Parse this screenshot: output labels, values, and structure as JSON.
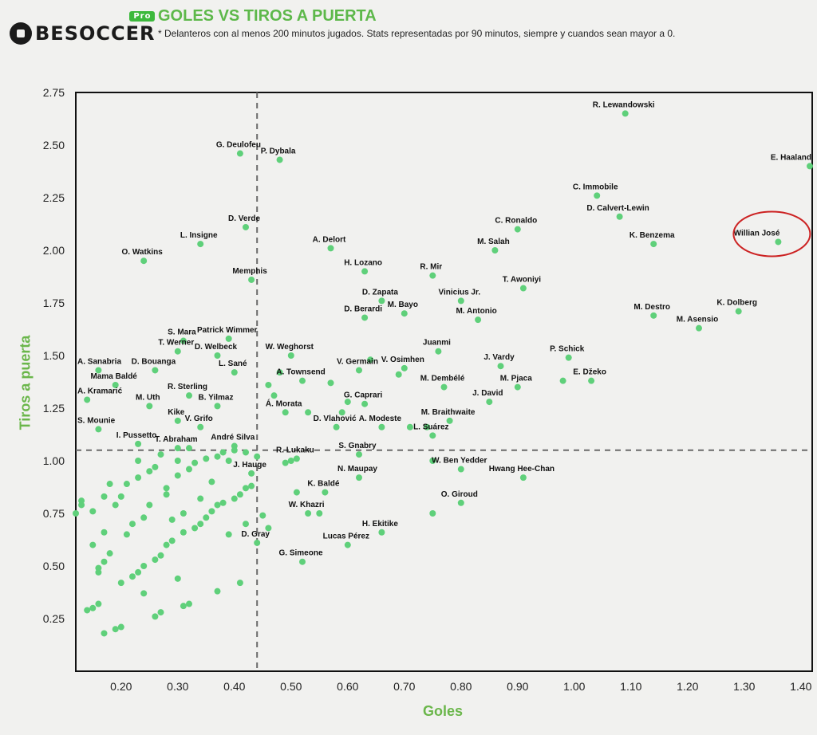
{
  "brand": {
    "logo_text": "BESOCCER",
    "pro_badge": "Pro"
  },
  "title": "GOLES VS TIROS A PUERTA",
  "subtitle": "* Delanteros con al menos 200 minutos jugados. Stats representadas por 90 minutos, siempre y cuandos sean mayor a 0.",
  "colors": {
    "title": "#5db84a",
    "point": "#5fd07a",
    "highlight": "#cc2222",
    "reference": "#6a6a6a"
  },
  "chart_data": {
    "type": "scatter",
    "title": "GOLES VS TIROS A PUERTA",
    "xlabel": "Goles",
    "ylabel": "Tiros a puerta",
    "xlim": [
      0.12,
      1.42
    ],
    "ylim": [
      0.0,
      2.75
    ],
    "xticks": [
      "0.20",
      "0.30",
      "0.40",
      "0.50",
      "0.60",
      "0.70",
      "0.80",
      "0.90",
      "1.00",
      "1.10",
      "1.20",
      "1.30",
      "1.40"
    ],
    "yticks": [
      "0.25",
      "0.50",
      "0.75",
      "1.00",
      "1.25",
      "1.50",
      "1.75",
      "2.00",
      "2.25",
      "2.50",
      "2.75"
    ],
    "grid": false,
    "reference_lines": {
      "x": 0.44,
      "y": 1.05
    },
    "highlight": "Willian José",
    "labeled_points": [
      {
        "name": "R. Lewandowski",
        "x": 1.09,
        "y": 2.65
      },
      {
        "name": "E. Haaland",
        "x": 1.42,
        "y": 2.4
      },
      {
        "name": "C. Immobile",
        "x": 1.04,
        "y": 2.26
      },
      {
        "name": "D. Calvert-Lewin",
        "x": 1.08,
        "y": 2.16
      },
      {
        "name": "K. Benzema",
        "x": 1.14,
        "y": 2.03
      },
      {
        "name": "Willian José",
        "x": 1.36,
        "y": 2.04
      },
      {
        "name": "C. Ronaldo",
        "x": 0.9,
        "y": 2.1
      },
      {
        "name": "M. Salah",
        "x": 0.86,
        "y": 2.0
      },
      {
        "name": "T. Awoniyi",
        "x": 0.91,
        "y": 1.82
      },
      {
        "name": "M. Destro",
        "x": 1.14,
        "y": 1.69
      },
      {
        "name": "K. Dolberg",
        "x": 1.29,
        "y": 1.71
      },
      {
        "name": "M. Asensio",
        "x": 1.22,
        "y": 1.63
      },
      {
        "name": "G. Deulofeu",
        "x": 0.41,
        "y": 2.46
      },
      {
        "name": "P. Dybala",
        "x": 0.48,
        "y": 2.43
      },
      {
        "name": "D. Verde",
        "x": 0.42,
        "y": 2.11
      },
      {
        "name": "L. Insigne",
        "x": 0.34,
        "y": 2.03
      },
      {
        "name": "O. Watkins",
        "x": 0.24,
        "y": 1.95
      },
      {
        "name": "A. Delort",
        "x": 0.57,
        "y": 2.01
      },
      {
        "name": "Memphis",
        "x": 0.43,
        "y": 1.86
      },
      {
        "name": "H. Lozano",
        "x": 0.63,
        "y": 1.9
      },
      {
        "name": "R. Mir",
        "x": 0.75,
        "y": 1.88
      },
      {
        "name": "D. Zapata",
        "x": 0.66,
        "y": 1.76
      },
      {
        "name": "Vinicius Jr.",
        "x": 0.8,
        "y": 1.76
      },
      {
        "name": "D. Berardi",
        "x": 0.63,
        "y": 1.68
      },
      {
        "name": "M. Bayo",
        "x": 0.7,
        "y": 1.7
      },
      {
        "name": "M. Antonio",
        "x": 0.83,
        "y": 1.67
      },
      {
        "name": "S. Mara",
        "x": 0.31,
        "y": 1.57
      },
      {
        "name": "Patrick Wimmer",
        "x": 0.39,
        "y": 1.58
      },
      {
        "name": "T. Werner",
        "x": 0.3,
        "y": 1.52
      },
      {
        "name": "D. Welbeck",
        "x": 0.37,
        "y": 1.5
      },
      {
        "name": "W. Weghorst",
        "x": 0.5,
        "y": 1.5
      },
      {
        "name": "Juanmi",
        "x": 0.76,
        "y": 1.52
      },
      {
        "name": "P. Schick",
        "x": 0.99,
        "y": 1.49
      },
      {
        "name": "A. Sanabria",
        "x": 0.16,
        "y": 1.43
      },
      {
        "name": "D. Bouanga",
        "x": 0.26,
        "y": 1.43
      },
      {
        "name": "L. Sané",
        "x": 0.4,
        "y": 1.42
      },
      {
        "name": "A. Townsend",
        "x": 0.52,
        "y": 1.38
      },
      {
        "name": "V. Germain",
        "x": 0.62,
        "y": 1.43
      },
      {
        "name": "V. Osimhen",
        "x": 0.7,
        "y": 1.44
      },
      {
        "name": "J. Vardy",
        "x": 0.87,
        "y": 1.45
      },
      {
        "name": "E. Džeko",
        "x": 1.03,
        "y": 1.38
      },
      {
        "name": "Mama Baldé",
        "x": 0.19,
        "y": 1.36
      },
      {
        "name": "M. Dembélé",
        "x": 0.77,
        "y": 1.35
      },
      {
        "name": "M. Pjaca",
        "x": 0.9,
        "y": 1.35
      },
      {
        "name": "A. Kramarić",
        "x": 0.14,
        "y": 1.29
      },
      {
        "name": "R. Sterling",
        "x": 0.32,
        "y": 1.31
      },
      {
        "name": "M. Uth",
        "x": 0.25,
        "y": 1.26
      },
      {
        "name": "B. Yilmaz",
        "x": 0.37,
        "y": 1.26
      },
      {
        "name": "G. Caprari",
        "x": 0.63,
        "y": 1.27
      },
      {
        "name": "J. David",
        "x": 0.85,
        "y": 1.28
      },
      {
        "name": "Á. Morata",
        "x": 0.49,
        "y": 1.23
      },
      {
        "name": "M. Braithwaite",
        "x": 0.78,
        "y": 1.19
      },
      {
        "name": "Kike",
        "x": 0.3,
        "y": 1.19
      },
      {
        "name": "D. Vlahović",
        "x": 0.58,
        "y": 1.16
      },
      {
        "name": "A. Modeste",
        "x": 0.66,
        "y": 1.16
      },
      {
        "name": "L. Suárez",
        "x": 0.75,
        "y": 1.12
      },
      {
        "name": "S. Mounie",
        "x": 0.16,
        "y": 1.15
      },
      {
        "name": "V. Grifo",
        "x": 0.34,
        "y": 1.16
      },
      {
        "name": "I. Pussetto",
        "x": 0.23,
        "y": 1.08
      },
      {
        "name": "T. Abraham",
        "x": 0.3,
        "y": 1.06
      },
      {
        "name": "André Silva",
        "x": 0.4,
        "y": 1.07
      },
      {
        "name": "S. Gnabry",
        "x": 0.62,
        "y": 1.03
      },
      {
        "name": "R. Lukaku",
        "x": 0.51,
        "y": 1.01
      },
      {
        "name": "W. Ben Yedder",
        "x": 0.8,
        "y": 0.96
      },
      {
        "name": "J. Hauge",
        "x": 0.43,
        "y": 0.94
      },
      {
        "name": "N. Maupay",
        "x": 0.62,
        "y": 0.92
      },
      {
        "name": "Hwang Hee-Chan",
        "x": 0.91,
        "y": 0.92
      },
      {
        "name": "K. Baldé",
        "x": 0.56,
        "y": 0.85
      },
      {
        "name": "O. Giroud",
        "x": 0.8,
        "y": 0.8
      },
      {
        "name": "W. Khazri",
        "x": 0.53,
        "y": 0.75
      },
      {
        "name": "H. Ekitike",
        "x": 0.66,
        "y": 0.66
      },
      {
        "name": "D. Gray",
        "x": 0.44,
        "y": 0.61
      },
      {
        "name": "Lucas Pérez",
        "x": 0.6,
        "y": 0.6
      },
      {
        "name": "G. Simeone",
        "x": 0.52,
        "y": 0.52
      }
    ],
    "unlabeled_points": [
      [
        0.12,
        0.75
      ],
      [
        0.13,
        0.79
      ],
      [
        0.13,
        0.81
      ],
      [
        0.14,
        0.29
      ],
      [
        0.15,
        0.3
      ],
      [
        0.15,
        0.6
      ],
      [
        0.15,
        0.76
      ],
      [
        0.16,
        0.32
      ],
      [
        0.16,
        0.47
      ],
      [
        0.16,
        0.49
      ],
      [
        0.17,
        0.18
      ],
      [
        0.17,
        0.52
      ],
      [
        0.17,
        0.66
      ],
      [
        0.17,
        0.83
      ],
      [
        0.18,
        0.56
      ],
      [
        0.18,
        0.89
      ],
      [
        0.19,
        0.2
      ],
      [
        0.19,
        0.79
      ],
      [
        0.2,
        0.21
      ],
      [
        0.2,
        0.42
      ],
      [
        0.2,
        0.83
      ],
      [
        0.21,
        0.65
      ],
      [
        0.21,
        0.89
      ],
      [
        0.22,
        0.45
      ],
      [
        0.22,
        0.7
      ],
      [
        0.23,
        0.47
      ],
      [
        0.23,
        0.92
      ],
      [
        0.23,
        1.0
      ],
      [
        0.24,
        0.37
      ],
      [
        0.24,
        0.73
      ],
      [
        0.24,
        0.5
      ],
      [
        0.25,
        0.95
      ],
      [
        0.25,
        0.79
      ],
      [
        0.26,
        0.26
      ],
      [
        0.26,
        0.53
      ],
      [
        0.26,
        0.97
      ],
      [
        0.27,
        0.28
      ],
      [
        0.27,
        1.03
      ],
      [
        0.27,
        0.55
      ],
      [
        0.28,
        0.84
      ],
      [
        0.28,
        0.6
      ],
      [
        0.28,
        0.87
      ],
      [
        0.29,
        0.72
      ],
      [
        0.29,
        0.62
      ],
      [
        0.3,
        0.44
      ],
      [
        0.3,
        0.93
      ],
      [
        0.3,
        1.0
      ],
      [
        0.31,
        0.31
      ],
      [
        0.31,
        0.75
      ],
      [
        0.31,
        0.66
      ],
      [
        0.32,
        0.32
      ],
      [
        0.32,
        0.96
      ],
      [
        0.32,
        1.06
      ],
      [
        0.33,
        0.68
      ],
      [
        0.33,
        0.99
      ],
      [
        0.34,
        0.7
      ],
      [
        0.34,
        0.82
      ],
      [
        0.35,
        0.73
      ],
      [
        0.35,
        1.01
      ],
      [
        0.36,
        0.76
      ],
      [
        0.36,
        0.9
      ],
      [
        0.37,
        0.38
      ],
      [
        0.37,
        0.79
      ],
      [
        0.37,
        1.02
      ],
      [
        0.38,
        0.8
      ],
      [
        0.38,
        1.04
      ],
      [
        0.39,
        0.65
      ],
      [
        0.39,
        1.0
      ],
      [
        0.4,
        0.82
      ],
      [
        0.4,
        1.05
      ],
      [
        0.41,
        0.42
      ],
      [
        0.41,
        0.84
      ],
      [
        0.42,
        0.87
      ],
      [
        0.42,
        0.7
      ],
      [
        0.42,
        1.04
      ],
      [
        0.43,
        0.88
      ],
      [
        0.44,
        1.02
      ],
      [
        0.45,
        0.74
      ],
      [
        0.46,
        0.68
      ],
      [
        0.46,
        1.36
      ],
      [
        0.47,
        1.31
      ],
      [
        0.48,
        1.42
      ],
      [
        0.49,
        0.99
      ],
      [
        0.5,
        1.0
      ],
      [
        0.51,
        0.85
      ],
      [
        0.53,
        1.23
      ],
      [
        0.55,
        0.75
      ],
      [
        0.57,
        1.37
      ],
      [
        0.59,
        1.23
      ],
      [
        0.6,
        1.28
      ],
      [
        0.64,
        1.48
      ],
      [
        0.69,
        1.41
      ],
      [
        0.71,
        1.16
      ],
      [
        0.74,
        1.16
      ],
      [
        0.75,
        0.75
      ],
      [
        0.75,
        1.0
      ],
      [
        0.98,
        1.38
      ]
    ]
  }
}
